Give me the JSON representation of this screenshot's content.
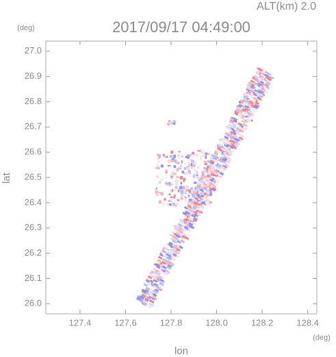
{
  "chart_data": {
    "type": "radar-echo",
    "title": "2017/09/17 04:49:00",
    "subtitle": "ALT(km) 2.0",
    "x_label": "lon",
    "y_label": "lat",
    "x_unit": "(deg)",
    "y_unit": "(deg)",
    "xlim": [
      127.25,
      128.44
    ],
    "ylim": [
      25.96,
      27.04
    ],
    "xticks": [
      127.4,
      127.6,
      127.8,
      {
        "value": 128,
        "label": "128.0"
      },
      128.2,
      128.4
    ],
    "yticks": [
      {
        "value": 26,
        "label": "26.0"
      },
      26.1,
      26.2,
      26.3,
      26.4,
      26.5,
      26.6,
      26.7,
      26.8,
      26.9,
      {
        "value": 27,
        "label": "27.0"
      }
    ]
  }
}
